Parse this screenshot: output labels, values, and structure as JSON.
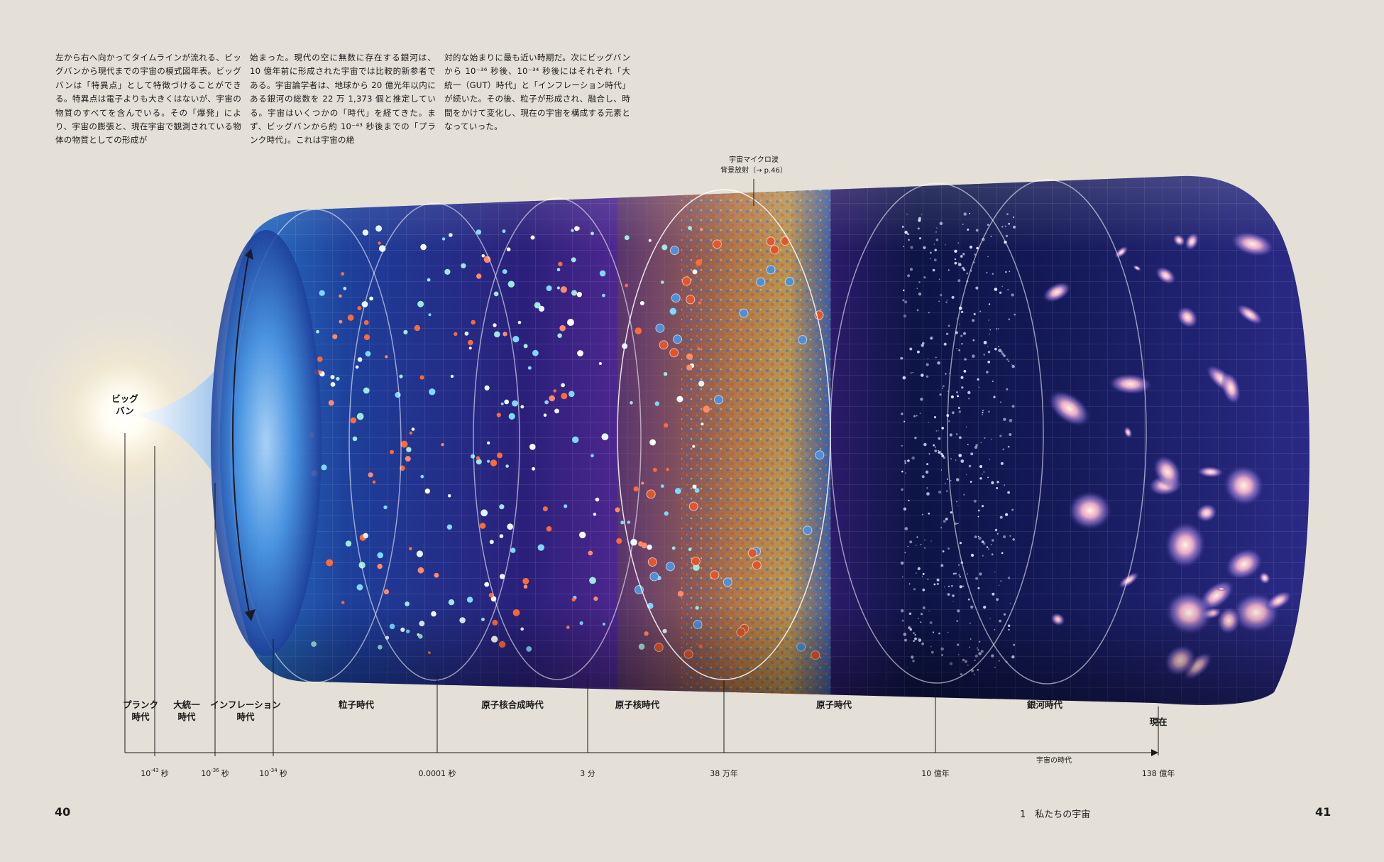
{
  "intro": {
    "col1": "左から右へ向かってタイムラインが流れる、ビッグバンから現代までの宇宙の模式図年表。ビッグバンは「特異点」として特徴づけることができる。特異点は電子よりも大きくはないが、宇宙の物質のすべてを含んでいる。その「爆発」により、宇宙の膨張と、現在宇宙で観測されている物体の物質としての形成が",
    "col2": "始まった。現代の空に無数に存在する銀河は、10 億年前に形成された宇宙では比較的新参者である。宇宙論学者は、地球から 20 億光年以内にある銀河の総数を 22 万 1,373 個と推定している。宇宙はいくつかの「時代」を経てきた。まず、ビッグバンから約 10⁻⁴³ 秒後までの「プランク時代」。これは宇宙の絶",
    "col3": "対的な始まりに最も近い時期だ。次にビッグバンから 10⁻³⁶ 秒後、10⁻³⁴ 秒後にはそれぞれ「大統一（GUT）時代」と「インフレーション時代」が続いた。その後、粒子が形成され、融合し、時間をかけて変化し、現在の宇宙を構成する元素となっていった。"
  },
  "diagram": {
    "big_bang_label": [
      "ビッグ",
      "バン"
    ],
    "cmb_label": [
      "宇宙マイクロ波",
      "背景放射（→ p.46）"
    ],
    "eras": [
      {
        "lines": [
          "プランク",
          "時代"
        ]
      },
      {
        "lines": [
          "大統一",
          "時代"
        ]
      },
      {
        "lines": [
          "インフレーション",
          "時代"
        ]
      },
      {
        "lines": [
          "粒子時代"
        ]
      },
      {
        "lines": [
          "原子核合成時代"
        ]
      },
      {
        "lines": [
          "原子核時代"
        ]
      },
      {
        "lines": [
          "原子時代"
        ]
      },
      {
        "lines": [
          "銀河時代"
        ]
      },
      {
        "lines": [
          "現在"
        ]
      }
    ],
    "ticks": [
      {
        "base": "10",
        "exp": "-43",
        "unit": "秒"
      },
      {
        "base": "10",
        "exp": "-36",
        "unit": "秒"
      },
      {
        "base": "10",
        "exp": "-34",
        "unit": "秒"
      },
      {
        "base": "0.0001 秒",
        "exp": "",
        "unit": ""
      },
      {
        "base": "3 分",
        "exp": "",
        "unit": ""
      },
      {
        "base": "38 万年",
        "exp": "",
        "unit": ""
      },
      {
        "base": "10 億年",
        "exp": "",
        "unit": ""
      },
      {
        "base": "138 億年",
        "exp": "",
        "unit": ""
      }
    ],
    "axis_label": "宇宙の時代"
  },
  "footer": {
    "page_left": "40",
    "page_right": "41",
    "chapter": "1　私たちの宇宙"
  }
}
